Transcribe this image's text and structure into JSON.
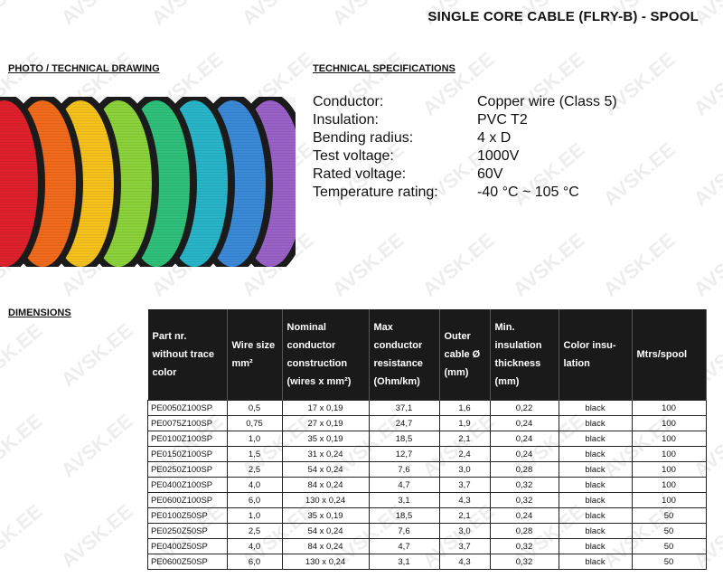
{
  "watermark": "AVSK.EE",
  "title": "SINGLE CORE CABLE (FLRY-B) - SPOOL",
  "sections": {
    "photo": "PHOTO / TECHNICAL DRAWING",
    "specs": "TECHNICAL SPECIFICATIONS",
    "dimensions": "DIMENSIONS"
  },
  "spool_colors": [
    "#e0202a",
    "#f26a1b",
    "#f5c21c",
    "#8cd23a",
    "#2fc07a",
    "#28b5c9",
    "#3a8ad8",
    "#9a62c8"
  ],
  "specs": [
    {
      "label": "Conductor:",
      "value": "Copper wire (Class 5)"
    },
    {
      "label": "Insulation:",
      "value": "PVC T2"
    },
    {
      "label": "Bending radius:",
      "value": "4 x D"
    },
    {
      "label": "Test voltage:",
      "value": "1000V"
    },
    {
      "label": "Rated voltage:",
      "value": "60V"
    },
    {
      "label": "Temperature rating:",
      "value": "-40 °C ~ 105 °C"
    }
  ],
  "table": {
    "headers": [
      "Part nr. without trace color",
      "Wire size mm²",
      "Nominal conductor construction (wires x mm²)",
      "Max conductor resistance (Ohm/km)",
      "Outer cable Ø (mm)",
      "Min. insulation thickness (mm)",
      "Color insu-lation",
      "Mtrs/spool"
    ],
    "rows": [
      [
        "PE0050Z100SP",
        "0,5",
        "17 x 0,19",
        "37,1",
        "1,6",
        "0,22",
        "black",
        "100"
      ],
      [
        "PE0075Z100SP",
        "0,75",
        "27 x 0,19",
        "24,7",
        "1,9",
        "0,24",
        "black",
        "100"
      ],
      [
        "PE0100Z100SP",
        "1,0",
        "35 x 0,19",
        "18,5",
        "2,1",
        "0,24",
        "black",
        "100"
      ],
      [
        "PE0150Z100SP",
        "1,5",
        "31 x 0,24",
        "12,7",
        "2,4",
        "0,24",
        "black",
        "100"
      ],
      [
        "PE0250Z100SP",
        "2,5",
        "54 x 0,24",
        "7,6",
        "3,0",
        "0,28",
        "black",
        "100"
      ],
      [
        "PE0400Z100SP",
        "4,0",
        "84 x 0,24",
        "4,7",
        "3,7",
        "0,32",
        "black",
        "100"
      ],
      [
        "PE0600Z100SP",
        "6,0",
        "130 x 0,24",
        "3,1",
        "4,3",
        "0,32",
        "black",
        "100"
      ],
      [
        "PE0100Z50SP",
        "1,0",
        "35 x 0,19",
        "18,5",
        "2,1",
        "0,24",
        "black",
        "50"
      ],
      [
        "PE0250Z50SP",
        "2,5",
        "54 x 0,24",
        "7,6",
        "3,0",
        "0,28",
        "black",
        "50"
      ],
      [
        "PE0400Z50SP",
        "4,0",
        "84 x 0,24",
        "4,7",
        "3,7",
        "0,32",
        "black",
        "50"
      ],
      [
        "PE0600Z50SP",
        "6,0",
        "130 x 0,24",
        "3,1",
        "4,3",
        "0,32",
        "black",
        "50"
      ]
    ]
  }
}
